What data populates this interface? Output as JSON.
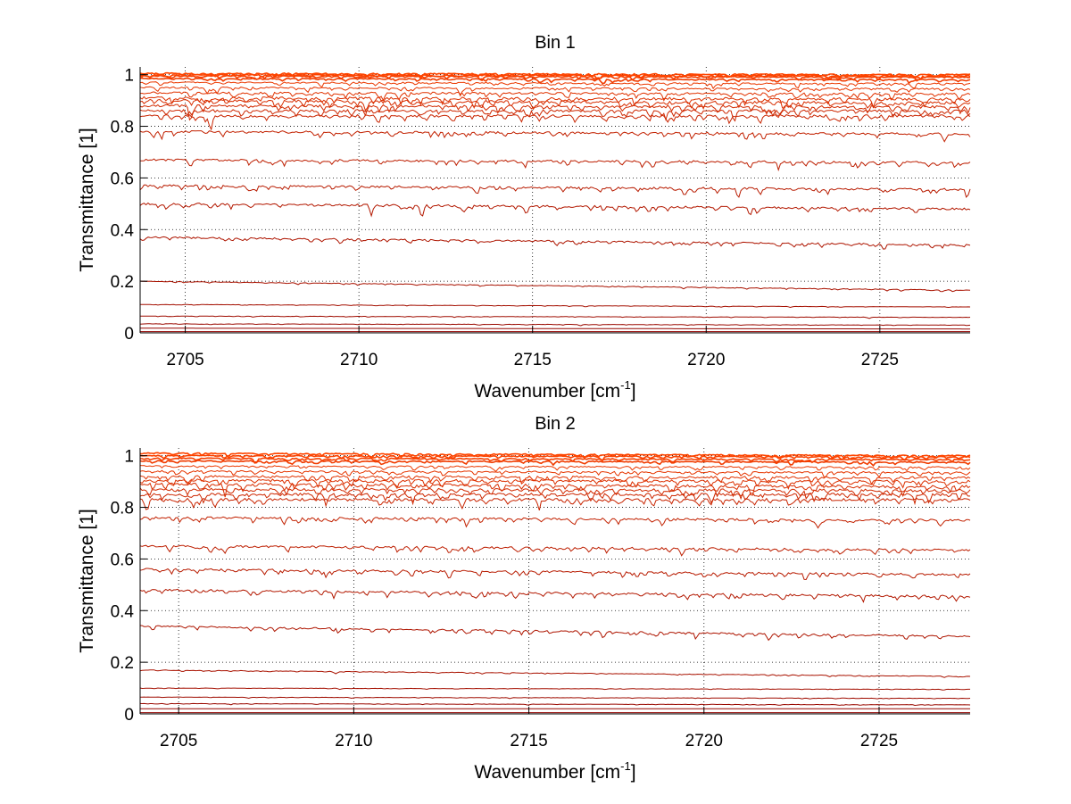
{
  "chart_data": [
    {
      "type": "line",
      "title": "Bin 1",
      "xlabel": "Wavenumber [cm",
      "xlabel_sup": "-1",
      "xlabel_end": "]",
      "ylabel": "Transmittance [1]",
      "xlim": [
        2703.7,
        2727.6
      ],
      "ylim": [
        0,
        1.03
      ],
      "xticks": [
        2705,
        2710,
        2715,
        2720,
        2725
      ],
      "xtick_labels": [
        "2705",
        "2710",
        "2715",
        "2720",
        "2725"
      ],
      "yticks": [
        0,
        0.2,
        0.4,
        0.6,
        0.8,
        1
      ],
      "ytick_labels": [
        "0",
        "0.2",
        "0.4",
        "0.6",
        "0.8",
        "1"
      ],
      "grid": true,
      "series_note_colors": [
        "#8b0000",
        "#ff4500"
      ],
      "series": [
        {
          "start": 0.0,
          "end": 0.0,
          "noise": 0.0
        },
        {
          "start": 0.005,
          "end": 0.005,
          "noise": 0.0
        },
        {
          "start": 0.018,
          "end": 0.015,
          "noise": 0.0
        },
        {
          "start": 0.035,
          "end": 0.03,
          "noise": 0.001
        },
        {
          "start": 0.065,
          "end": 0.06,
          "noise": 0.001
        },
        {
          "start": 0.11,
          "end": 0.1,
          "noise": 0.001
        },
        {
          "start": 0.2,
          "end": 0.165,
          "noise": 0.002
        },
        {
          "start": 0.37,
          "end": 0.34,
          "noise": 0.006
        },
        {
          "start": 0.5,
          "end": 0.48,
          "noise": 0.008
        },
        {
          "start": 0.57,
          "end": 0.555,
          "noise": 0.008
        },
        {
          "start": 0.67,
          "end": 0.66,
          "noise": 0.008
        },
        {
          "start": 0.78,
          "end": 0.77,
          "noise": 0.008
        },
        {
          "start": 0.84,
          "end": 0.84,
          "noise": 0.01
        },
        {
          "start": 0.86,
          "end": 0.86,
          "noise": 0.01
        },
        {
          "start": 0.88,
          "end": 0.875,
          "noise": 0.01
        },
        {
          "start": 0.9,
          "end": 0.89,
          "noise": 0.01
        },
        {
          "start": 0.91,
          "end": 0.905,
          "noise": 0.01
        },
        {
          "start": 0.93,
          "end": 0.925,
          "noise": 0.008
        },
        {
          "start": 0.95,
          "end": 0.945,
          "noise": 0.006
        },
        {
          "start": 0.97,
          "end": 0.965,
          "noise": 0.005
        },
        {
          "start": 0.985,
          "end": 0.98,
          "noise": 0.004
        },
        {
          "start": 0.995,
          "end": 0.99,
          "noise": 0.004
        },
        {
          "start": 1.0,
          "end": 0.995,
          "noise": 0.004
        },
        {
          "start": 1.005,
          "end": 1.0,
          "noise": 0.004
        }
      ]
    },
    {
      "type": "line",
      "title": "Bin 2",
      "xlabel": "Wavenumber [cm",
      "xlabel_sup": "-1",
      "xlabel_end": "]",
      "ylabel": "Transmittance [1]",
      "xlim": [
        2703.9,
        2727.6
      ],
      "ylim": [
        0,
        1.03
      ],
      "xticks": [
        2705,
        2710,
        2715,
        2720,
        2725
      ],
      "xtick_labels": [
        "2705",
        "2710",
        "2715",
        "2720",
        "2725"
      ],
      "yticks": [
        0,
        0.2,
        0.4,
        0.6,
        0.8,
        1
      ],
      "ytick_labels": [
        "0",
        "0.2",
        "0.4",
        "0.6",
        "0.8",
        "1"
      ],
      "grid": true,
      "series_note_colors": [
        "#8b0000",
        "#ff4500"
      ],
      "series": [
        {
          "start": 0.0,
          "end": 0.0,
          "noise": 0.0
        },
        {
          "start": 0.005,
          "end": 0.005,
          "noise": 0.0
        },
        {
          "start": 0.02,
          "end": 0.02,
          "noise": 0.0
        },
        {
          "start": 0.04,
          "end": 0.035,
          "noise": 0.001
        },
        {
          "start": 0.065,
          "end": 0.06,
          "noise": 0.001
        },
        {
          "start": 0.1,
          "end": 0.095,
          "noise": 0.001
        },
        {
          "start": 0.17,
          "end": 0.145,
          "noise": 0.002
        },
        {
          "start": 0.34,
          "end": 0.3,
          "noise": 0.006
        },
        {
          "start": 0.48,
          "end": 0.455,
          "noise": 0.008
        },
        {
          "start": 0.56,
          "end": 0.54,
          "noise": 0.008
        },
        {
          "start": 0.65,
          "end": 0.635,
          "noise": 0.008
        },
        {
          "start": 0.76,
          "end": 0.75,
          "noise": 0.008
        },
        {
          "start": 0.83,
          "end": 0.83,
          "noise": 0.01
        },
        {
          "start": 0.85,
          "end": 0.85,
          "noise": 0.01
        },
        {
          "start": 0.87,
          "end": 0.865,
          "noise": 0.01
        },
        {
          "start": 0.89,
          "end": 0.88,
          "noise": 0.01
        },
        {
          "start": 0.905,
          "end": 0.9,
          "noise": 0.01
        },
        {
          "start": 0.92,
          "end": 0.915,
          "noise": 0.008
        },
        {
          "start": 0.94,
          "end": 0.935,
          "noise": 0.006
        },
        {
          "start": 0.96,
          "end": 0.955,
          "noise": 0.005
        },
        {
          "start": 0.98,
          "end": 0.975,
          "noise": 0.004
        },
        {
          "start": 0.99,
          "end": 0.985,
          "noise": 0.004
        },
        {
          "start": 1.0,
          "end": 0.995,
          "noise": 0.004
        },
        {
          "start": 1.01,
          "end": 1.0,
          "noise": 0.004
        }
      ]
    }
  ]
}
